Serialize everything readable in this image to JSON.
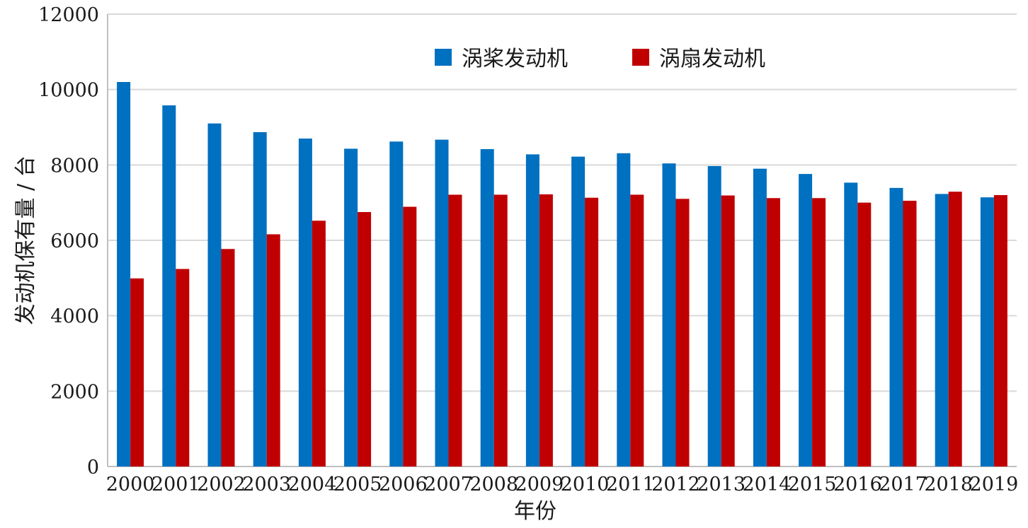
{
  "chart_data": {
    "type": "bar",
    "xlabel": "年份",
    "ylabel": "发动机保有量 / 台",
    "ylim": [
      0,
      12000
    ],
    "yticks": [
      "0",
      "2000",
      "4000",
      "6000",
      "8000",
      "10000",
      "12000"
    ],
    "grid": true,
    "legend_position": "top-center",
    "categories": [
      "2000",
      "2001",
      "2002",
      "2003",
      "2004",
      "2005",
      "2006",
      "2007",
      "2008",
      "2009",
      "2010",
      "2011",
      "2012",
      "2013",
      "2014",
      "2015",
      "2016",
      "2017",
      "2018",
      "2019"
    ],
    "series": [
      {
        "name": "涡桨发动机",
        "color": "#0070c0",
        "values": [
          10200,
          9580,
          9100,
          8870,
          8700,
          8430,
          8620,
          8670,
          8420,
          8280,
          8220,
          8310,
          8040,
          7970,
          7900,
          7760,
          7530,
          7390,
          7230,
          7140
        ]
      },
      {
        "name": "涡扇发动机",
        "color": "#c00000",
        "values": [
          4990,
          5240,
          5770,
          6160,
          6520,
          6750,
          6890,
          7210,
          7210,
          7220,
          7130,
          7210,
          7100,
          7190,
          7120,
          7120,
          7000,
          7050,
          7290,
          7200
        ]
      }
    ]
  }
}
